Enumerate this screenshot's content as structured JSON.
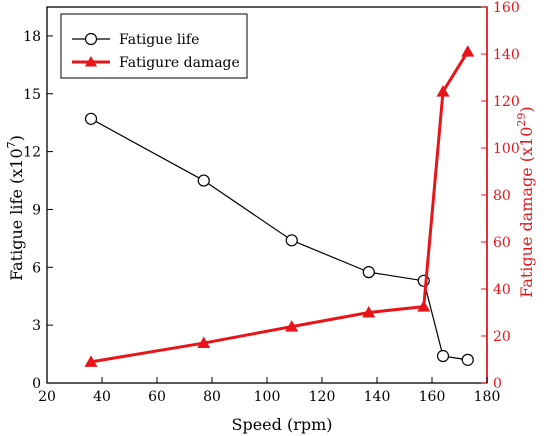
{
  "colors": {
    "left_series": "#000000",
    "right_series": "#e8141a",
    "background": "#ffffff"
  },
  "chart_data": {
    "type": "line",
    "xlabel": "Speed (rpm)",
    "ylabel_left": "Fatigue life (x10",
    "ylabel_left_exp": "7",
    "ylabel_left_suffix": ")",
    "ylabel_right": "Fatigue damage (x10",
    "ylabel_right_exp": "29",
    "ylabel_right_suffix": ")",
    "xlim": [
      20,
      180
    ],
    "xticks": [
      20,
      40,
      60,
      80,
      100,
      120,
      140,
      160,
      180
    ],
    "ylim_left": [
      0,
      19.5
    ],
    "yticks_left": [
      0,
      3,
      6,
      9,
      12,
      15,
      18
    ],
    "ylim_right": [
      0,
      160
    ],
    "yticks_right": [
      0,
      20,
      40,
      60,
      80,
      100,
      120,
      140,
      160
    ],
    "legend_position": "top-left",
    "series": [
      {
        "name": "Fatigue life",
        "axis": "left",
        "marker": "open-circle",
        "color": "#000000",
        "x": [
          36,
          77,
          109,
          137,
          157,
          164,
          173
        ],
        "y": [
          13.7,
          10.5,
          7.4,
          5.75,
          5.3,
          1.4,
          1.2
        ]
      },
      {
        "name": "Fatigure damage",
        "axis": "right",
        "marker": "filled-triangle",
        "color": "#e8141a",
        "x": [
          36,
          77,
          109,
          137,
          157,
          164,
          173
        ],
        "y": [
          9,
          17,
          24,
          30,
          32.5,
          124,
          141
        ]
      }
    ]
  }
}
